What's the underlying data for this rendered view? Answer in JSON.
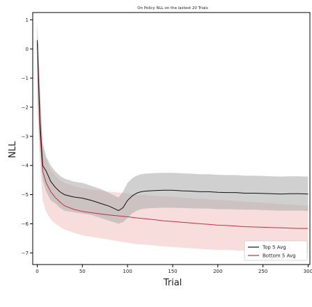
{
  "chart_data": {
    "type": "line",
    "title": "On Policy NLL on the lastest 20 Trials",
    "xlabel": "Trial",
    "ylabel": "NLL",
    "xlim": [
      -5,
      302
    ],
    "ylim": [
      -7.4,
      1.25
    ],
    "xticks": [
      0,
      50,
      100,
      150,
      200,
      250,
      300
    ],
    "yticks": [
      1,
      0,
      -1,
      -2,
      -3,
      -4,
      -5,
      -6,
      -7
    ],
    "grid": false,
    "legend_position": "bottom-right",
    "series": [
      {
        "name": "Top 5 Avg",
        "color": "#111111",
        "band_color": "#b0b0b0",
        "x": [
          0,
          3,
          6,
          10,
          15,
          20,
          25,
          30,
          40,
          50,
          60,
          70,
          80,
          90,
          95,
          100,
          105,
          110,
          115,
          120,
          130,
          140,
          150,
          160,
          170,
          180,
          190,
          200,
          210,
          220,
          230,
          240,
          250,
          260,
          270,
          280,
          290,
          300
        ],
        "values": [
          0.3,
          -2.5,
          -4.0,
          -4.2,
          -4.55,
          -4.75,
          -4.9,
          -5.0,
          -5.08,
          -5.12,
          -5.2,
          -5.3,
          -5.4,
          -5.55,
          -5.45,
          -5.2,
          -5.05,
          -4.95,
          -4.9,
          -4.88,
          -4.86,
          -4.85,
          -4.85,
          -4.87,
          -4.88,
          -4.9,
          -4.9,
          -4.92,
          -4.93,
          -4.93,
          -4.95,
          -4.95,
          -4.96,
          -4.97,
          -4.98,
          -4.97,
          -4.97,
          -4.98
        ],
        "band_lower": [
          -1.3,
          -3.4,
          -4.5,
          -4.9,
          -5.2,
          -5.3,
          -5.45,
          -5.55,
          -5.6,
          -5.65,
          -5.7,
          -5.8,
          -5.9,
          -6.0,
          -5.95,
          -5.8,
          -5.65,
          -5.55,
          -5.5,
          -5.48,
          -5.46,
          -5.45,
          -5.45,
          -5.46,
          -5.47,
          -5.48,
          -5.48,
          -5.5,
          -5.5,
          -5.51,
          -5.52,
          -5.52,
          -5.53,
          -5.54,
          -5.55,
          -5.55,
          -5.55,
          -5.56
        ],
        "band_upper": [
          0.9,
          -1.3,
          -3.2,
          -3.7,
          -4.0,
          -4.2,
          -4.35,
          -4.45,
          -4.55,
          -4.6,
          -4.7,
          -4.8,
          -4.95,
          -5.1,
          -4.9,
          -4.6,
          -4.45,
          -4.35,
          -4.3,
          -4.28,
          -4.26,
          -4.25,
          -4.25,
          -4.27,
          -4.28,
          -4.3,
          -4.3,
          -4.32,
          -4.33,
          -4.33,
          -4.35,
          -4.35,
          -4.36,
          -4.37,
          -4.38,
          -4.37,
          -4.37,
          -4.38
        ]
      },
      {
        "name": "Bottom 5 Avg",
        "color": "#c03040",
        "band_color": "#f4c7c7",
        "x": [
          0,
          3,
          6,
          10,
          15,
          20,
          25,
          30,
          40,
          50,
          60,
          70,
          80,
          90,
          100,
          110,
          120,
          130,
          140,
          150,
          160,
          170,
          180,
          190,
          200,
          210,
          220,
          230,
          240,
          250,
          260,
          270,
          280,
          290,
          300
        ],
        "values": [
          0.2,
          -2.8,
          -4.2,
          -4.6,
          -4.9,
          -5.1,
          -5.25,
          -5.38,
          -5.5,
          -5.58,
          -5.62,
          -5.66,
          -5.7,
          -5.73,
          -5.76,
          -5.8,
          -5.83,
          -5.86,
          -5.9,
          -5.92,
          -5.95,
          -5.97,
          -6.0,
          -6.02,
          -6.05,
          -6.06,
          -6.08,
          -6.1,
          -6.11,
          -6.12,
          -6.13,
          -6.14,
          -6.15,
          -6.16,
          -6.16
        ],
        "band_lower": [
          -2.0,
          -4.0,
          -5.2,
          -5.6,
          -5.85,
          -6.0,
          -6.1,
          -6.2,
          -6.3,
          -6.4,
          -6.45,
          -6.5,
          -6.55,
          -6.6,
          -6.65,
          -6.7,
          -6.72,
          -6.75,
          -6.78,
          -6.8,
          -6.82,
          -6.84,
          -6.86,
          -6.88,
          -6.9,
          -6.9,
          -6.92,
          -6.93,
          -6.94,
          -6.95,
          -6.96,
          -6.97,
          -6.98,
          -6.99,
          -7.0
        ],
        "band_upper": [
          0.8,
          -1.6,
          -3.4,
          -3.8,
          -4.15,
          -4.35,
          -4.5,
          -4.6,
          -4.7,
          -4.78,
          -4.82,
          -4.86,
          -4.9,
          -4.93,
          -4.96,
          -5.0,
          -5.02,
          -5.04,
          -5.06,
          -5.08,
          -5.1,
          -5.12,
          -5.14,
          -5.16,
          -5.18,
          -5.2,
          -5.22,
          -5.24,
          -5.26,
          -5.28,
          -5.3,
          -5.32,
          -5.34,
          -5.36,
          -5.38
        ]
      }
    ]
  }
}
